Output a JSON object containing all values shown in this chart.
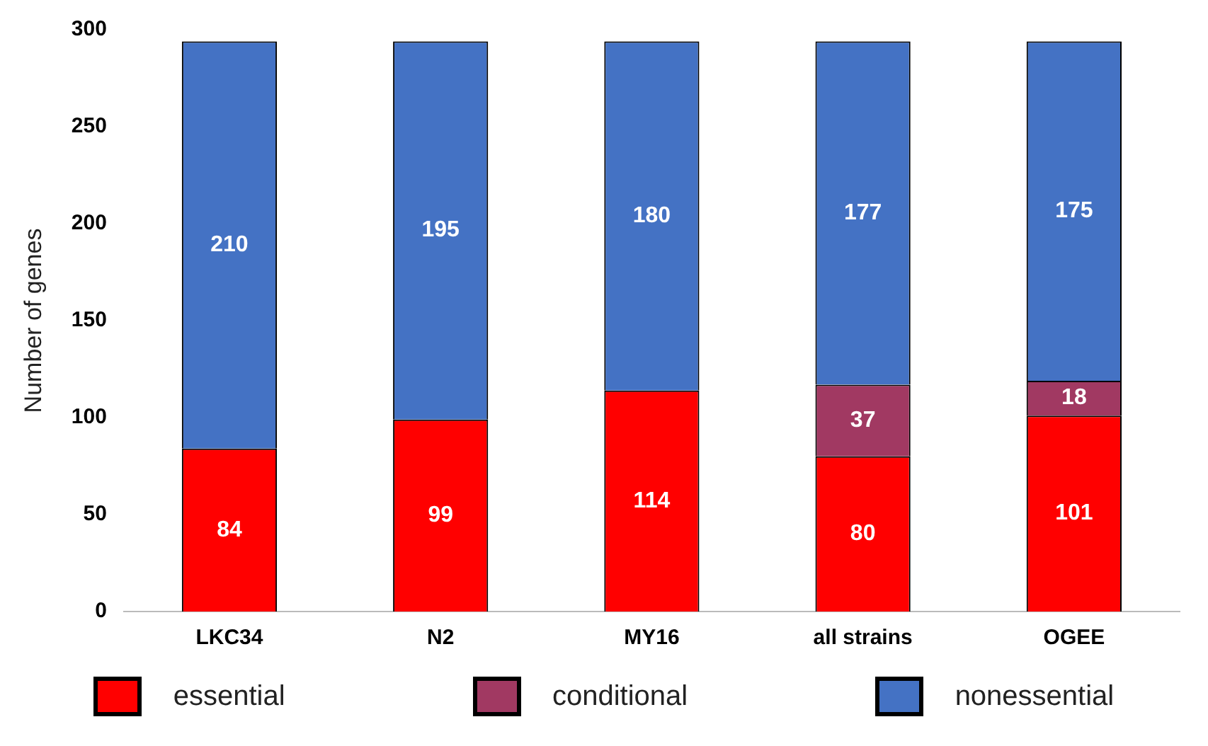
{
  "chart_data": {
    "type": "bar",
    "stacked": true,
    "ylabel": "Number of genes",
    "categories": [
      "LKC34",
      "N2",
      "MY16",
      "all strains",
      "OGEE"
    ],
    "series": [
      {
        "name": "essential",
        "color": "#ff0000",
        "values": [
          84,
          99,
          114,
          80,
          101
        ]
      },
      {
        "name": "conditional",
        "color": "#a13962",
        "values": [
          null,
          null,
          null,
          37,
          18
        ]
      },
      {
        "name": "nonessential",
        "color": "#4472c4",
        "values": [
          210,
          195,
          180,
          177,
          175
        ]
      }
    ],
    "ylim": [
      0,
      300
    ],
    "yticks": [
      0,
      50,
      100,
      150,
      200,
      250,
      300
    ],
    "grid": false,
    "legend": "bottom",
    "data_labels": true
  }
}
